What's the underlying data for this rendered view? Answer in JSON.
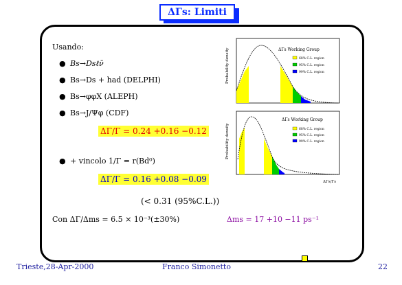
{
  "slide": {
    "title": "ΔΓs: Limiti",
    "intro": "Usando:",
    "bullets": [
      "Bs→Dsℓν̄",
      "Bs→Ds + had (DELPHI)",
      "Bs→φφX (ALEPH)",
      "Bs→J/Ψφ (CDF)"
    ],
    "result1": "ΔΓ/Γ = 0.24 +0.16 −0.12",
    "bullet5": "+ vincolo 1/Γ = r(Bd⁰)",
    "result2": "ΔΓ/Γ = 0.16 +0.08 −0.09",
    "limit": "(< 0.31 (95%C.L.))",
    "con": "Con ΔΓ/Δms = 6.5 × 10⁻³(±30%)",
    "dms": "Δms = 17 +10 −11 ps⁻¹"
  },
  "plots": {
    "top_title": "ΔΓs Working Group",
    "bottom_title": "ΔΓs Working Group",
    "ylabel": "Probability density",
    "xlabel": "ΔΓs/Γs",
    "legend": [
      "68% C.L. region",
      "95% C.L. region",
      "99% C.L. region"
    ],
    "colors": {
      "c68": "#ffff00",
      "c95": "#00cc00",
      "c99": "#0000ff"
    }
  },
  "footer": {
    "left": "Trieste,28-Apr-2000",
    "center": "Franco Simonetto",
    "page": "22"
  }
}
